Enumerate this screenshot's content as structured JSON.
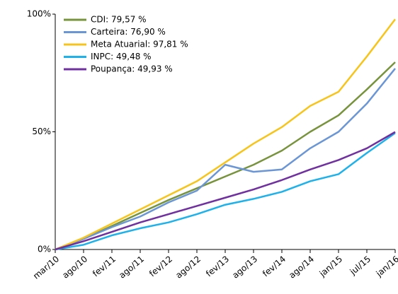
{
  "chart_data": {
    "type": "line",
    "categories": [
      "mar/10",
      "ago/10",
      "fev/11",
      "ago/11",
      "fev/12",
      "ago/12",
      "fev/13",
      "ago/13",
      "fev/14",
      "ago/14",
      "jan/15",
      "jul/15",
      "jan/16"
    ],
    "series": [
      {
        "name": "CDI: 79,57 %",
        "color": "#77933c",
        "values": [
          0,
          4.5,
          10,
          15.5,
          21,
          26,
          31,
          36,
          42,
          50,
          57,
          68,
          79.57
        ]
      },
      {
        "name": "Carteira: 76,90 %",
        "color": "#6b96d6",
        "values": [
          0,
          4.5,
          9.5,
          14,
          20,
          25,
          36,
          33,
          34,
          43,
          50,
          62,
          76.9
        ]
      },
      {
        "name": "Meta Atuarial: 97,81 %",
        "color": "#f6c41a",
        "values": [
          0,
          5,
          11,
          17,
          23,
          29,
          37,
          45,
          52,
          61,
          67,
          82,
          97.81
        ]
      },
      {
        "name": "INPC: 49,48 %",
        "color": "#1fb1ea",
        "values": [
          0,
          2,
          6,
          9,
          11.5,
          15,
          19,
          21.5,
          24.5,
          29,
          32,
          41,
          49.48
        ]
      },
      {
        "name": "Poupança: 49,93 %",
        "color": "#7030a0",
        "values": [
          0,
          3.5,
          7.5,
          11.5,
          15,
          18.5,
          22,
          25.5,
          29.5,
          34,
          38,
          43,
          49.93
        ]
      }
    ],
    "ylim": [
      0,
      100
    ],
    "yticks": [
      {
        "value": 0,
        "label": "0%"
      },
      {
        "value": 50,
        "label": "50%"
      },
      {
        "value": 100,
        "label": "100%"
      }
    ],
    "grid": false,
    "legend": "top-left"
  }
}
